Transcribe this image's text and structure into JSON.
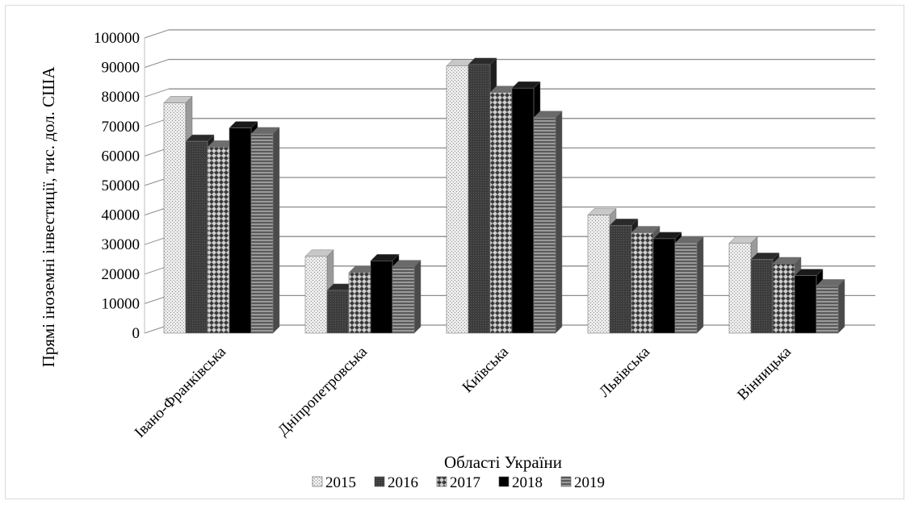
{
  "chart_data": {
    "type": "bar",
    "title": "",
    "xlabel": "Області України",
    "ylabel": "Прямі іноземні інвестиції, тис. дол. США",
    "ylim": [
      0,
      100000
    ],
    "yticks": [
      0,
      10000,
      20000,
      30000,
      40000,
      50000,
      60000,
      70000,
      80000,
      90000,
      100000
    ],
    "ytick_labels": [
      "0",
      "10000",
      "20000",
      "30000",
      "40000",
      "50000",
      "60000",
      "70000",
      "80000",
      "90000",
      "100000"
    ],
    "categories": [
      "Івано-Франківська",
      "Дніпропетровська",
      "Київська",
      "Львівська",
      "Вінницька"
    ],
    "series": [
      {
        "name": "2015",
        "values": [
          78000,
          26000,
          90500,
          40000,
          30500
        ]
      },
      {
        "name": "2016",
        "values": [
          65000,
          14500,
          91000,
          36500,
          25000
        ]
      },
      {
        "name": "2017",
        "values": [
          63000,
          20500,
          81500,
          34000,
          23500
        ]
      },
      {
        "name": "2018",
        "values": [
          69500,
          24500,
          83000,
          32000,
          19500
        ]
      },
      {
        "name": "2019",
        "values": [
          67500,
          22500,
          73000,
          30500,
          16000
        ]
      }
    ],
    "grid": true,
    "legend_position": "bottom",
    "style": "3d-clustered-column",
    "colors": {
      "2015": "#e0e0e0",
      "2016": "#3c3c3c",
      "2017": "#8a8a8a",
      "2018": "#000000",
      "2019": "#777777"
    }
  }
}
